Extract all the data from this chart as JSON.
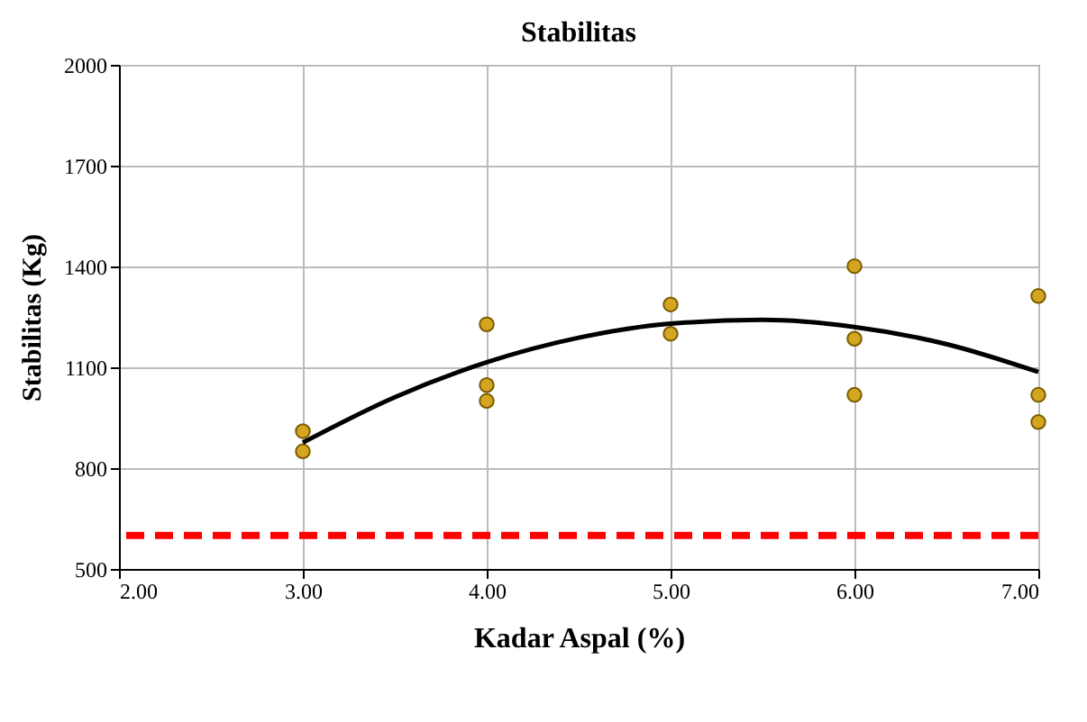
{
  "chart_data": {
    "type": "scatter",
    "title": "Stabilitas",
    "xlabel": "Kadar Aspal (%)",
    "ylabel": "Stabilitas (Kg)",
    "series": [
      {
        "color": "#d4a520",
        "marker": "circle",
        "x": [
          3,
          3,
          4,
          4,
          4,
          5,
          5,
          6,
          6,
          6,
          7,
          7,
          7
        ],
        "values": [
          910,
          850,
          1228,
          1047,
          1000,
          1287,
          1200,
          1401,
          1185,
          1018,
          1312,
          1018,
          937
        ]
      },
      {
        "type": "line",
        "color": "#000000",
        "x": [
          3,
          3.5,
          4,
          4.5,
          5,
          5.5,
          6,
          6.5,
          7
        ],
        "values": [
          876,
          1011,
          1115,
          1188,
          1230,
          1241,
          1220,
          1169,
          1086
        ]
      }
    ],
    "xlim": [
      2,
      7
    ],
    "xticks": [
      {
        "value": 2,
        "label": "2.00"
      },
      {
        "value": 3,
        "label": "3.00"
      },
      {
        "value": 4,
        "label": "4.00"
      },
      {
        "value": 5,
        "label": "5.00"
      },
      {
        "value": 6,
        "label": "6.00"
      },
      {
        "value": 7,
        "label": "7.00"
      }
    ],
    "ylim": [
      500,
      2000
    ],
    "yticks": [
      500,
      800,
      1100,
      1400,
      1700,
      2000
    ],
    "ref_lines": [
      {
        "axis": "y",
        "value": 600,
        "color": "#ff0000",
        "line_style": "dashed"
      }
    ],
    "grid": true
  }
}
